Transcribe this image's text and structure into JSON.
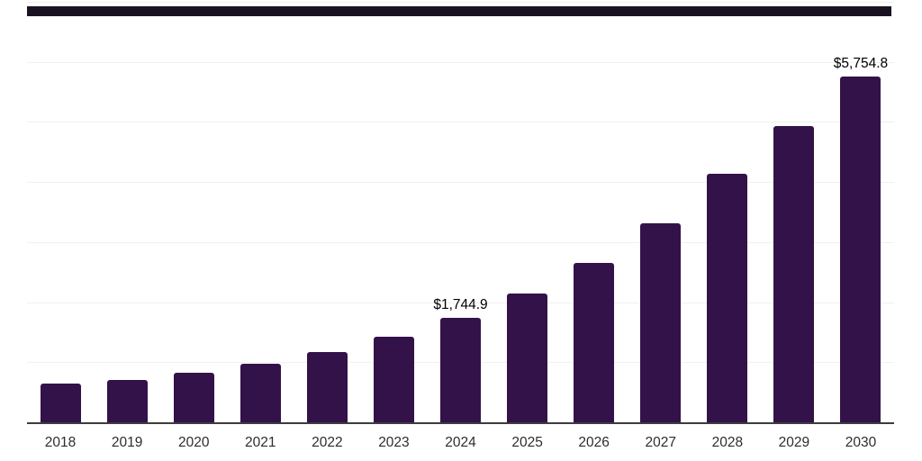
{
  "chart_data": {
    "type": "bar",
    "title": "",
    "xlabel": "",
    "ylabel": "",
    "categories": [
      "2018",
      "2019",
      "2020",
      "2021",
      "2022",
      "2023",
      "2024",
      "2025",
      "2026",
      "2027",
      "2028",
      "2029",
      "2030"
    ],
    "values": [
      650,
      700,
      830,
      980,
      1170,
      1420,
      1744.9,
      2140,
      2650,
      3320,
      4130,
      4930,
      5754.8
    ],
    "value_labels": [
      "",
      "",
      "",
      "",
      "",
      "",
      "$1,744.9",
      "",
      "",
      "",
      "",
      "",
      "$5,754.8"
    ],
    "ylim": [
      0,
      7000
    ],
    "grid": true,
    "grid_step": 1000,
    "legend": false,
    "y_tick_labels_visible": false,
    "colors": {
      "bar": "#331249",
      "grid_line": "#f0f0f0",
      "axis_line": "#3d3d3d",
      "value_label": "#000000",
      "tick_label": "#2d2d2d",
      "top_rule": "#1a1221",
      "background": "#ffffff"
    }
  }
}
